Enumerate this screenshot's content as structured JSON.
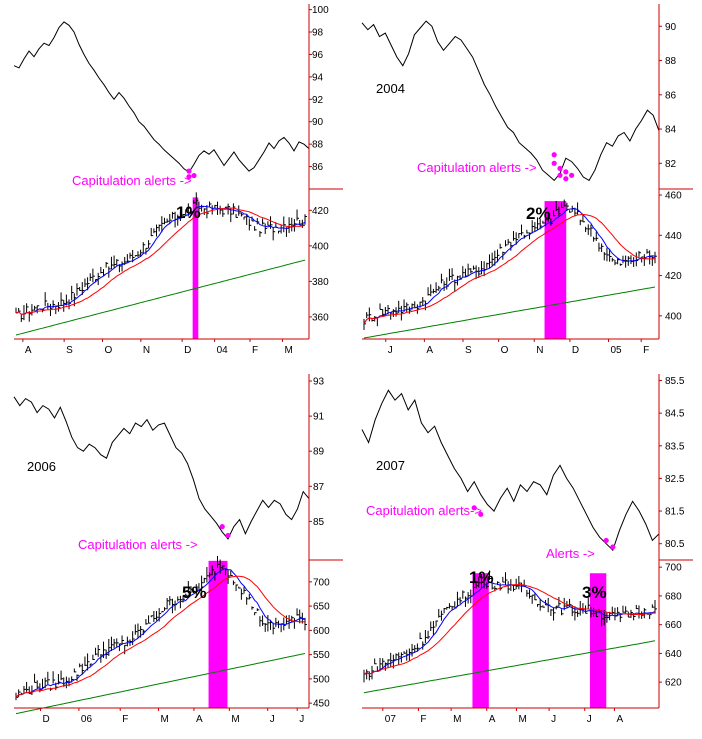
{
  "colors": {
    "price": "#000000",
    "ma_fast": "#0000ff",
    "ma_mid": "#ff0000",
    "ma_slow": "#008000",
    "alert": "#ff00ff",
    "axis": "#cc0000"
  },
  "chart_data": [
    {
      "type": "line",
      "year_label": "",
      "top": {
        "ylim": [
          84,
          100.5
        ],
        "yticks": [
          86,
          88,
          90,
          92,
          94,
          96,
          98,
          100
        ],
        "alert_text": "Capitulation alerts ->",
        "values": [
          95.0,
          94.8,
          95.6,
          96.3,
          95.8,
          96.5,
          97.0,
          96.8,
          97.5,
          98.4,
          98.9,
          98.6,
          98.0,
          96.9,
          96.0,
          95.2,
          94.6,
          93.9,
          93.3,
          92.6,
          92.0,
          92.6,
          92.1,
          91.4,
          90.8,
          90.0,
          89.6,
          89.0,
          88.4,
          88.0,
          87.5,
          87.1,
          86.7,
          86.3,
          85.8,
          85.5,
          86.2,
          87.0,
          87.4,
          87.1,
          87.5,
          86.8,
          86.1,
          86.7,
          87.3,
          86.6,
          86.1,
          85.6,
          85.9,
          86.6,
          87.3,
          88.1,
          87.6,
          88.3,
          88.6,
          88.1,
          87.4,
          88.2,
          88.0,
          87.6
        ],
        "alerts": [
          [
            35,
            85.6
          ],
          [
            35,
            85.1
          ],
          [
            36,
            85.2
          ]
        ]
      },
      "bottom": {
        "ylim": [
          347,
          432
        ],
        "yticks": [
          360,
          380,
          400,
          420
        ],
        "pct_label": "1%",
        "start": 360,
        "end": 412,
        "peak_index": 37,
        "peak": 425,
        "spikes": [
          [
            36,
            37
          ]
        ]
      },
      "months": [
        "A",
        "S",
        "O",
        "N",
        "D",
        "04",
        "F",
        "M"
      ],
      "month_pos": [
        0.03,
        0.17,
        0.3,
        0.43,
        0.57,
        0.68,
        0.8,
        0.91
      ]
    },
    {
      "type": "line",
      "year_label": "2004",
      "top": {
        "ylim": [
          80.5,
          91.3
        ],
        "yticks": [
          82,
          84,
          86,
          88,
          90
        ],
        "alert_text": "Capitulation alerts ->",
        "values": [
          90.2,
          89.8,
          90.1,
          89.4,
          89.6,
          88.9,
          88.2,
          87.7,
          88.4,
          89.5,
          89.9,
          90.3,
          90.0,
          89.1,
          88.6,
          89.0,
          89.4,
          89.2,
          88.7,
          88.2,
          87.4,
          86.6,
          86.0,
          85.3,
          84.7,
          84.1,
          83.8,
          83.2,
          82.9,
          82.6,
          82.2,
          81.6,
          81.3,
          81.0,
          81.4,
          82.3,
          82.1,
          81.7,
          81.2,
          81.0,
          81.6,
          82.5,
          83.2,
          83.0,
          83.6,
          83.8,
          83.3,
          84.0,
          84.5,
          85.1,
          84.8,
          83.9
        ],
        "alerts": [
          [
            33,
            82.5
          ],
          [
            33,
            82.0
          ],
          [
            34,
            81.7
          ],
          [
            34,
            81.3
          ],
          [
            35,
            81.5
          ],
          [
            35,
            81.1
          ],
          [
            36,
            81.3
          ]
        ]
      },
      "bottom": {
        "ylim": [
          388,
          463
        ],
        "yticks": [
          400,
          420,
          440,
          460
        ],
        "pct_label": "2%",
        "start": 398,
        "end": 428,
        "peak_index": 35,
        "peak": 455,
        "spikes": [
          [
            32,
            35
          ]
        ]
      },
      "months": [
        "J",
        "A",
        "S",
        "O",
        "N",
        "D",
        "05",
        "F"
      ],
      "month_pos": [
        0.08,
        0.21,
        0.34,
        0.46,
        0.58,
        0.7,
        0.83,
        0.94
      ]
    },
    {
      "type": "line",
      "year_label": "2006",
      "top": {
        "ylim": [
          82.8,
          93.4
        ],
        "yticks": [
          85,
          87,
          89,
          91,
          93
        ],
        "alert_text": "Capitulation alerts ->",
        "values": [
          92.1,
          91.6,
          92.0,
          91.8,
          91.2,
          91.6,
          91.4,
          90.9,
          91.5,
          90.7,
          89.8,
          89.2,
          89.0,
          89.4,
          89.2,
          88.8,
          88.6,
          89.5,
          89.9,
          90.3,
          90.0,
          90.6,
          90.4,
          90.8,
          90.2,
          90.5,
          90.6,
          89.9,
          89.2,
          88.9,
          88.3,
          87.4,
          86.3,
          85.7,
          85.3,
          84.9,
          84.4,
          84.0,
          84.7,
          85.1,
          84.3,
          85.0,
          85.6,
          86.2,
          85.8,
          86.2,
          86.0,
          85.4,
          85.1,
          85.7,
          86.7,
          86.3
        ],
        "alerts": [
          [
            36,
            84.7
          ],
          [
            37,
            84.2
          ]
        ]
      },
      "bottom": {
        "ylim": [
          440,
          745
        ],
        "yticks": [
          450,
          500,
          550,
          600,
          650,
          700
        ],
        "pct_label": "5%",
        "start": 465,
        "end": 615,
        "peak_index": 36,
        "peak": 735,
        "spikes": [
          [
            34,
            34
          ],
          [
            35,
            35
          ],
          [
            36,
            37
          ]
        ]
      },
      "months": [
        "D",
        "06",
        "F",
        "M",
        "A",
        "M",
        "J",
        "J"
      ],
      "month_pos": [
        0.09,
        0.22,
        0.36,
        0.49,
        0.61,
        0.73,
        0.86,
        0.96
      ]
    },
    {
      "type": "line",
      "year_label": "2007",
      "top": {
        "ylim": [
          80.0,
          85.7
        ],
        "yticks": [
          80.5,
          81.5,
          82.5,
          83.5,
          84.5,
          85.5
        ],
        "alert_text": "Capitulation alerts->",
        "alert_text_2": "Alerts ->",
        "values": [
          84.0,
          83.6,
          84.3,
          84.8,
          85.2,
          84.9,
          85.1,
          84.6,
          84.9,
          84.2,
          83.9,
          84.1,
          83.6,
          83.2,
          82.8,
          82.5,
          82.1,
          82.4,
          82.0,
          81.7,
          81.5,
          81.9,
          82.2,
          81.8,
          82.3,
          82.1,
          82.4,
          82.3,
          82.0,
          82.6,
          82.9,
          82.5,
          82.2,
          81.8,
          81.4,
          81.0,
          80.7,
          80.5,
          80.3,
          80.9,
          81.4,
          81.8,
          81.5,
          81.1,
          80.6,
          80.8
        ],
        "alerts": [
          [
            17,
            81.6
          ],
          [
            18,
            81.4
          ],
          [
            37,
            80.6
          ],
          [
            38,
            80.4
          ]
        ]
      },
      "bottom": {
        "ylim": [
          602,
          705
        ],
        "yticks": [
          620,
          640,
          660,
          680,
          700
        ],
        "pct_label": "1%",
        "pct_label_2": "3%",
        "start": 625,
        "end": 668,
        "peak_index": 18,
        "peak": 693,
        "spikes": [
          [
            17,
            19
          ],
          [
            35,
            37
          ]
        ]
      },
      "months": [
        "07",
        "F",
        "M",
        "A",
        "M",
        "J",
        "J",
        "A"
      ],
      "month_pos": [
        0.07,
        0.19,
        0.3,
        0.42,
        0.52,
        0.63,
        0.75,
        0.85
      ]
    }
  ]
}
